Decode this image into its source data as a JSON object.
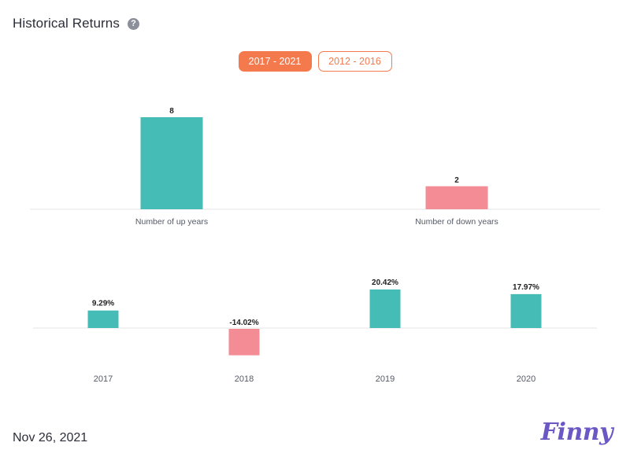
{
  "header": {
    "title": "Historical Returns",
    "help_icon": "question-circle-icon"
  },
  "tabs": [
    {
      "label": "2017 - 2021",
      "active": true
    },
    {
      "label": "2012 - 2016",
      "active": false
    }
  ],
  "colors": {
    "positive": "#45bdb6",
    "negative": "#f48c96",
    "accent": "#f47a4e",
    "logo": "#6b58c4"
  },
  "chart_data": [
    {
      "type": "bar",
      "categories": [
        "Number of up years",
        "Number of down years"
      ],
      "values": [
        8,
        2
      ],
      "value_labels": [
        "8",
        "2"
      ],
      "title": "",
      "xlabel": "",
      "ylabel": "",
      "ylim": [
        0,
        8
      ],
      "grid": false
    },
    {
      "type": "bar",
      "categories": [
        "2017",
        "2018",
        "2019",
        "2020"
      ],
      "values": [
        9.29,
        -14.02,
        20.42,
        17.97
      ],
      "value_labels": [
        "9.29%",
        "-14.02%",
        "20.42%",
        "17.97%"
      ],
      "title": "",
      "xlabel": "",
      "ylabel": "",
      "ylim": [
        -14.02,
        20.42
      ],
      "grid": false
    }
  ],
  "footer": {
    "date": "Nov 26, 2021",
    "logo": "Finny"
  }
}
